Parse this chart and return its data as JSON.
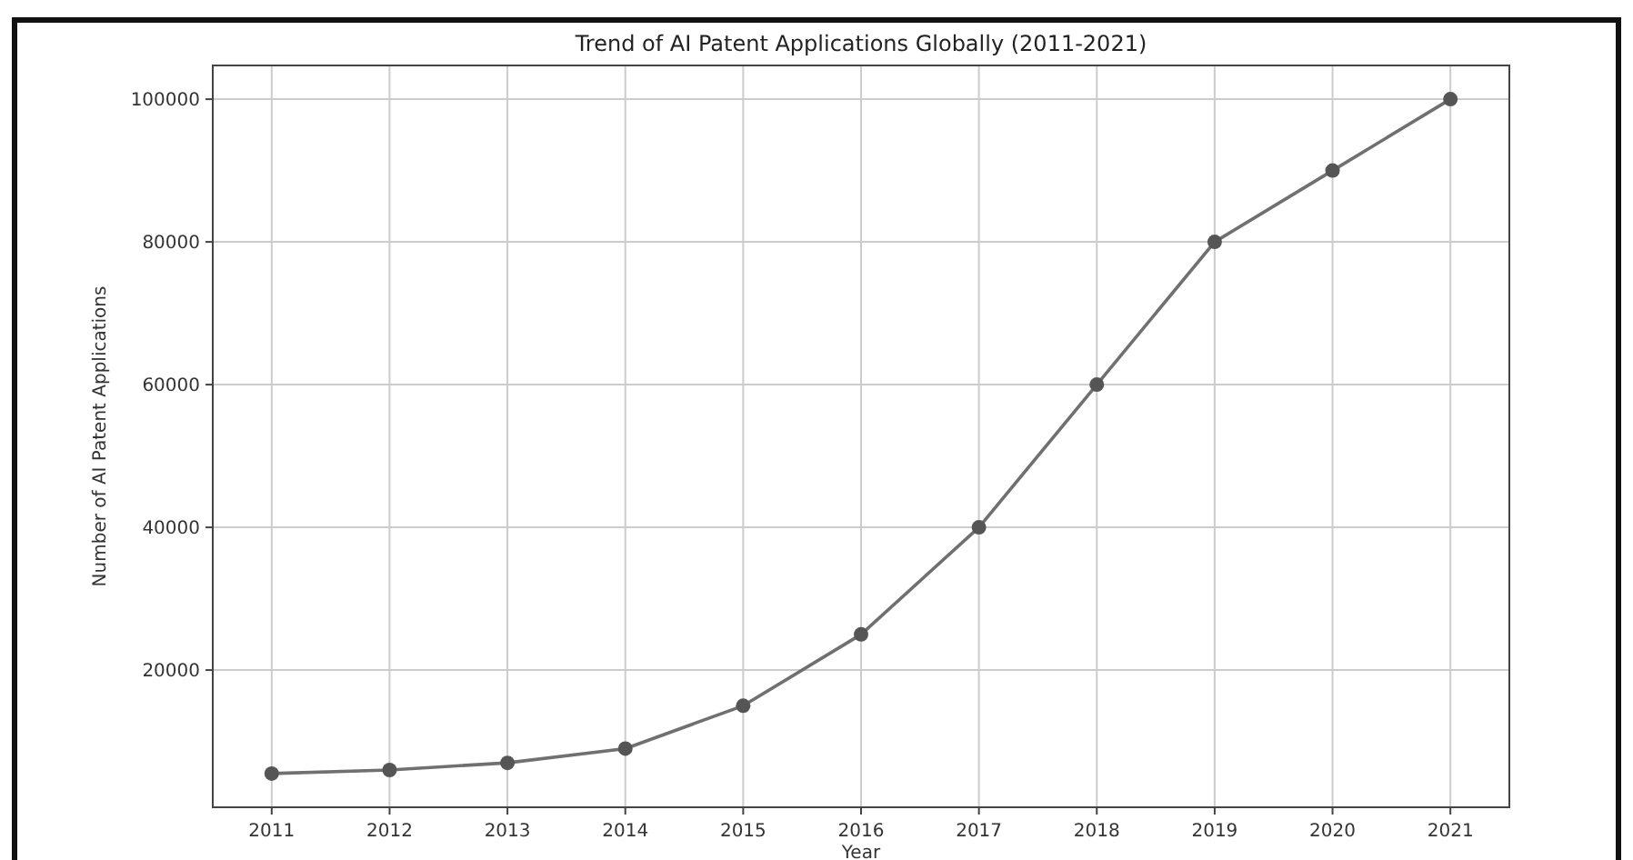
{
  "chart_data": {
    "type": "line",
    "title": "Trend of AI Patent Applications Globally (2011-2021)",
    "xlabel": "Year",
    "ylabel": "Number of AI Patent Applications",
    "x": [
      2011,
      2012,
      2013,
      2014,
      2015,
      2016,
      2017,
      2018,
      2019,
      2020,
      2021
    ],
    "series": [
      {
        "color": "#707070",
        "values": [
          5500,
          6000,
          7000,
          9000,
          15000,
          25000,
          40000,
          60000,
          80000,
          90000,
          100000
        ]
      }
    ],
    "xlim": [
      2010.5,
      2021.5
    ],
    "xticks": [
      2011,
      2012,
      2013,
      2014,
      2015,
      2016,
      2017,
      2018,
      2019,
      2020,
      2021
    ],
    "ylim": [
      775,
      104725
    ],
    "yticks": [
      20000,
      40000,
      60000,
      80000,
      100000
    ],
    "grid": true,
    "marker": "circle",
    "line_style": "solid"
  }
}
